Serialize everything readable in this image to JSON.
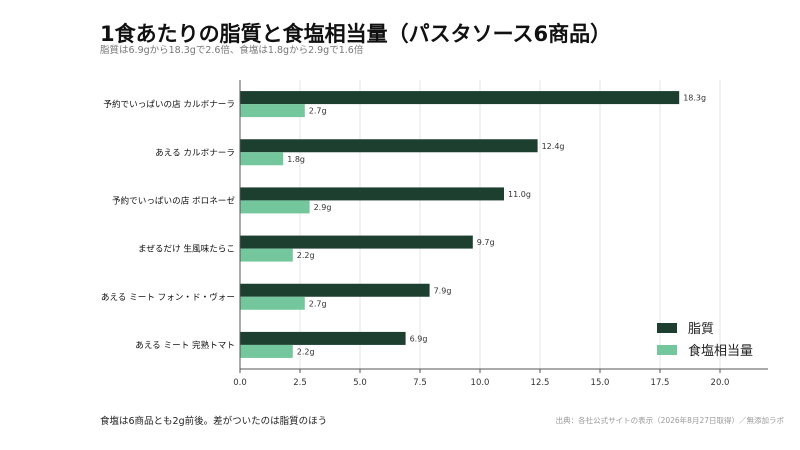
{
  "header": {
    "title": "1食あたりの脂質と食塩相当量（パスタソース6商品）",
    "subtitle": "脂質は6.9gから18.3gで2.6倍、食塩は1.8gから2.9gで1.6倍"
  },
  "footer": {
    "note": "食塩は6商品とも2g前後。差がついたのは脂質のほう",
    "source": "出典：各社公式サイトの表示（2026年8月27日取得）／無添加ラボ"
  },
  "colors": {
    "fat": "#1c3f30",
    "salt": "#74c69d",
    "axis": "#555555",
    "grid": "#e6e6e6"
  },
  "chart_data": {
    "type": "bar",
    "orientation": "horizontal",
    "title": "1食あたりの脂質と食塩相当量（パスタソース6商品）",
    "categories": [
      "予約でいっぱいの店 カルボナーラ",
      "あえる カルボナーラ",
      "予約でいっぱいの店 ボロネーゼ",
      "まぜるだけ 生風味たらこ",
      "あえる ミート フォン・ド・ヴォー",
      "あえる ミート 完熟トマト"
    ],
    "series": [
      {
        "name": "脂質",
        "values": [
          18.3,
          12.4,
          11.0,
          9.7,
          7.9,
          6.9
        ],
        "labels": [
          "18.3g",
          "12.4g",
          "11.0g",
          "9.7g",
          "7.9g",
          "6.9g"
        ]
      },
      {
        "name": "食塩相当量",
        "values": [
          2.7,
          1.8,
          2.9,
          2.2,
          2.7,
          2.2
        ],
        "labels": [
          "2.7g",
          "1.8g",
          "2.9g",
          "2.2g",
          "2.7g",
          "2.2g"
        ]
      }
    ],
    "xlim": [
      0,
      22
    ],
    "xticks": [
      "0.0",
      "2.5",
      "5.0",
      "7.5",
      "10.0",
      "12.5",
      "15.0",
      "17.5",
      "20.0"
    ],
    "xtick_values": [
      0,
      2.5,
      5,
      7.5,
      10,
      12.5,
      15,
      17.5,
      20
    ],
    "grid": "vertical",
    "legend_position": "bottom-right"
  }
}
